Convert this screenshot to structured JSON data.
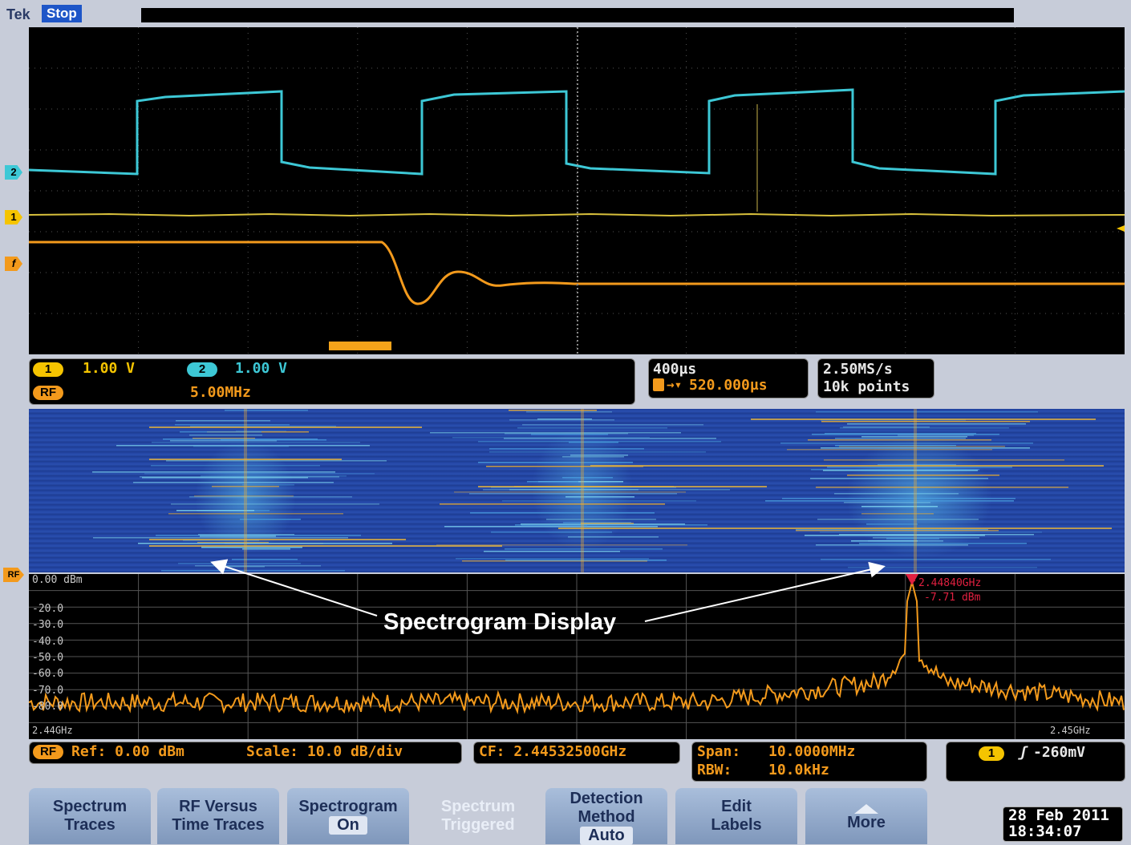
{
  "header": {
    "brand": "Tek",
    "run_state": "Stop"
  },
  "channels": {
    "ch1": {
      "marker": "1",
      "scale": "1.00 V",
      "color": "#f5c400"
    },
    "ch2": {
      "marker": "2",
      "scale": "1.00 V",
      "color": "#3dc8d6"
    },
    "rf": {
      "marker": "RF",
      "scale": "5.00MHz",
      "color": "#f39a1c"
    }
  },
  "side_markers": {
    "ch2": "2",
    "ch1": "1",
    "rf_time": "f",
    "rf_freq": "RF"
  },
  "timebase": {
    "scale": "400µs",
    "trigger_pos": "520.000µs",
    "sample_rate": "2.50MS/s",
    "record_length": "10k points"
  },
  "rf_display": {
    "ref_label": "0.00 dBm",
    "y_labels": [
      "-20.0",
      "-30.0",
      "-40.0",
      "-50.0",
      "-60.0",
      "-70.0",
      "-80.0"
    ],
    "start_freq": "2.44GHz",
    "stop_freq": "2.45GHz",
    "marker_symbol": "R",
    "marker_freq": "2.44840GHz",
    "marker_level": "-7.71 dBm"
  },
  "rf_readout": {
    "marker": "RF",
    "ref": "Ref: 0.00 dBm",
    "scale": "Scale: 10.0 dB/div",
    "cf": "CF: 2.44532500GHz",
    "span_label": "Span:",
    "span_value": "10.0000MHz",
    "rbw_label": "RBW:",
    "rbw_value": "10.0kHz"
  },
  "trigger": {
    "source": "1",
    "slope_symbol": "ʃ",
    "level": "-260mV"
  },
  "annotation": {
    "text": "Spectrogram Display"
  },
  "menu": [
    {
      "l1": "Spectrum",
      "l2": "Traces"
    },
    {
      "l1": "RF Versus",
      "l2": "Time Traces"
    },
    {
      "l1": "Spectrogram",
      "l2": "On"
    },
    {
      "l1": "Spectrum",
      "l2": "Triggered"
    },
    {
      "l1": "Detection",
      "l2": "Method",
      "l3": "Auto"
    },
    {
      "l1": "Edit",
      "l2": "Labels"
    },
    {
      "l1": "More"
    }
  ],
  "datetime": {
    "date": "28 Feb  2011",
    "time": "18:34:07"
  }
}
